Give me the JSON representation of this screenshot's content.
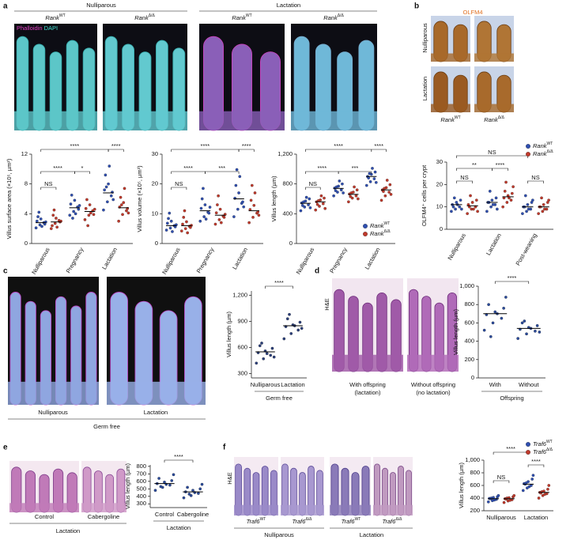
{
  "panel_labels": [
    "a",
    "b",
    "c",
    "d",
    "e",
    "f"
  ],
  "panel_a": {
    "groups": [
      "Nulliparous",
      "Lactation"
    ],
    "genotypes": [
      {
        "text": "Rank",
        "sup": "WT"
      },
      {
        "text": "Rank",
        "sup": "Δ/Δ"
      }
    ],
    "stain": [
      "Phalloidin",
      "DAPI"
    ]
  },
  "panel_b": {
    "stain": "OLFM4",
    "rows": [
      "Nulliparous",
      "Lactation"
    ],
    "genotypes": [
      {
        "text": "Rank",
        "sup": "WT"
      },
      {
        "text": "Rank",
        "sup": "Δ/Δ"
      }
    ]
  },
  "panel_c": {
    "columns": [
      "Nulliparous",
      "Lactation"
    ],
    "condition": "Germ free"
  },
  "panel_d": {
    "stain": "H&E",
    "columns": [
      [
        "With offspring",
        "(lactation)"
      ],
      [
        "Without offspring",
        "(no lactation)"
      ]
    ]
  },
  "panel_e": {
    "columns": [
      "Control",
      "Cabergoline"
    ],
    "condition": "Lactation"
  },
  "panel_f": {
    "stain": "H&E",
    "genotypes": [
      {
        "text": "Traf6",
        "sup": "WT"
      },
      {
        "text": "Traf6",
        "sup": "Δ/Δ"
      }
    ],
    "groups": [
      "Nulliparous",
      "Lactation"
    ]
  },
  "chart_data": [
    {
      "type": "strip",
      "ylabel": "Villus surface area (×10⁵, µm²)",
      "categories": [
        "Nulliparous",
        "Pregnancy",
        "Lactation"
      ],
      "ylim": [
        0,
        12
      ],
      "yticks": [
        0,
        4,
        8,
        12
      ],
      "series": [
        {
          "name": "Rank",
          "name_sup": "WT",
          "color": "#2f4fb0",
          "values": [
            [
              2.1,
              2.5,
              2.8,
              3.0,
              3.3,
              2.6,
              3.6,
              2.3,
              2.9,
              4.2
            ],
            [
              3.8,
              4.3,
              4.9,
              5.3,
              5.8,
              4.6,
              6.5,
              4.0,
              5.1,
              3.4
            ],
            [
              4.5,
              5.6,
              6.4,
              7.2,
              8.0,
              6.9,
              9.2,
              10.4,
              5.9,
              7.6
            ]
          ],
          "means": [
            2.8,
            4.8,
            6.8
          ]
        },
        {
          "name": "Rank",
          "name_sup": "Δ/Δ",
          "color": "#c0392b",
          "values": [
            [
              2.0,
              2.7,
              3.1,
              2.4,
              3.4,
              2.9,
              3.8,
              2.2,
              3.0,
              4.5
            ],
            [
              3.2,
              3.8,
              4.4,
              4.7,
              5.2,
              3.9,
              5.9,
              4.1,
              4.6,
              2.4
            ],
            [
              3.0,
              3.9,
              4.4,
              4.9,
              5.5,
              4.7,
              6.2,
              7.4,
              4.1,
              5.2
            ]
          ],
          "means": [
            2.9,
            4.3,
            4.8
          ]
        }
      ],
      "annotations": [
        "****",
        "****",
        "NS",
        "****",
        "*"
      ]
    },
    {
      "type": "strip",
      "ylabel": "Villus volume (×10⁵, µm³)",
      "categories": [
        "Nulliparous",
        "Pregnancy",
        "Lactation"
      ],
      "ylim": [
        0,
        30
      ],
      "yticks": [
        0,
        10,
        20,
        30
      ],
      "series": [
        {
          "name": "Rank",
          "name_sup": "WT",
          "color": "#2f4fb0",
          "values": [
            [
              4.5,
              5.2,
              6.0,
              6.8,
              7.5,
              5.6,
              8.4,
              4.0,
              6.3,
              10.2
            ],
            [
              7.5,
              9.0,
              10.5,
              11.8,
              13.0,
              10.2,
              15.0,
              8.2,
              12.2,
              18.5
            ],
            [
              9,
              11.5,
              13.5,
              15.2,
              17,
              14,
              19.5,
              22.5,
              12.3,
              24.8
            ]
          ],
          "means": [
            6,
            11,
            15
          ]
        },
        {
          "name": "Rank",
          "name_sup": "Δ/Δ",
          "color": "#c0392b",
          "values": [
            [
              4.2,
              5.0,
              5.8,
              6.5,
              7.3,
              5.4,
              8.8,
              3.6,
              6.1,
              11.0
            ],
            [
              6.5,
              8.0,
              9.2,
              10.3,
              11.5,
              8.8,
              13.0,
              7.0,
              9.8,
              16.0
            ],
            [
              7,
              8.8,
              10.2,
              11.4,
              12.8,
              10.6,
              14.5,
              17,
              9.5,
              19.5
            ]
          ],
          "means": [
            6,
            9.5,
            11
          ]
        }
      ],
      "annotations": [
        "****",
        "****",
        "***",
        "NS",
        "****"
      ]
    },
    {
      "type": "strip",
      "ylabel": "Villus length (µm)",
      "categories": [
        "Nulliparous",
        "Pregnancy",
        "Lactation"
      ],
      "ylim": [
        0,
        1200
      ],
      "yticks": [
        0,
        400,
        800,
        {
          "value": 1200,
          "label": "1,200"
        }
      ],
      "legend": "lower right",
      "series": [
        {
          "name": "Rank",
          "name_sup": "WT",
          "color": "#2f4fb0",
          "values": [
            [
              440,
              490,
              520,
              545,
              570,
              600,
              510,
              620,
              480,
              560
            ],
            [
              640,
              690,
              720,
              745,
              770,
              800,
              710,
              840,
              680,
              760
            ],
            [
              780,
              830,
              870,
              900,
              930,
              960,
              880,
              1010,
              820,
              940
            ]
          ],
          "means": [
            540,
            740,
            900
          ]
        },
        {
          "name": "Rank",
          "name_sup": "Δ/Δ",
          "color": "#c0392b",
          "values": [
            [
              450,
              500,
              535,
              560,
              585,
              610,
              525,
              640,
              470,
              575
            ],
            [
              560,
              610,
              640,
              665,
              690,
              720,
              630,
              760,
              600,
              680
            ],
            [
              580,
              640,
              690,
              720,
              750,
              790,
              700,
              850,
              660,
              740
            ]
          ],
          "means": [
            560,
            660,
            720
          ]
        }
      ],
      "annotations": [
        "****",
        "****",
        "NS",
        "****",
        "***"
      ]
    },
    {
      "type": "strip",
      "ylabel": "OLFM4⁺ cells per crypt",
      "categories": [
        "Nulliparous",
        "Lactation",
        "Post-weaning"
      ],
      "ylim": [
        0,
        30
      ],
      "yticks": [
        0,
        10,
        20,
        30
      ],
      "legend": "upper right",
      "series": [
        {
          "name": "Rank",
          "name_sup": "WT",
          "color": "#2f4fb0",
          "values": [
            [
              8,
              9,
              10,
              11,
              12,
              13,
              10,
              11,
              9,
              14
            ],
            [
              8,
              10,
              11,
              12,
              13,
              14,
              12,
              11,
              9,
              17
            ],
            [
              7,
              8,
              9,
              10,
              11,
              12,
              10,
              9,
              13,
              15
            ]
          ],
          "means": [
            11,
            12,
            10
          ]
        },
        {
          "name": "Rank",
          "name_sup": "Δ/Δ",
          "color": "#c0392b",
          "values": [
            [
              7,
              9,
              10,
              11,
              12,
              13,
              10,
              9,
              8,
              15
            ],
            [
              10,
              12,
              13,
              14,
              15,
              16,
              17,
              14,
              19,
              21
            ],
            [
              7,
              8,
              9,
              10,
              11,
              12,
              10,
              9,
              13,
              14
            ]
          ],
          "means": [
            10.5,
            14.5,
            10
          ]
        }
      ],
      "annotations": [
        "NS",
        "**",
        "****",
        "NS",
        "NS"
      ]
    },
    {
      "type": "strip",
      "ylabel": "Villus length (µm)",
      "xlabel": "Germ free",
      "categories": [
        "Nulliparous",
        "Lactation"
      ],
      "ylim": [
        250,
        1250
      ],
      "yticks": [
        300,
        600,
        900,
        {
          "value": 1200,
          "label": "1,200"
        }
      ],
      "color": "#2b3f7a",
      "values": [
        [
          420,
          470,
          510,
          540,
          560,
          590,
          620,
          530,
          490,
          650
        ],
        [
          700,
          760,
          800,
          840,
          860,
          890,
          930,
          850,
          820,
          980
        ]
      ],
      "means": [
        550,
        850
      ],
      "annotations": [
        "****"
      ]
    },
    {
      "type": "strip",
      "ylabel": "Villus length (µm)",
      "xlabel": "Offspring",
      "categories": [
        "With",
        "Without"
      ],
      "ylim": [
        0,
        1000
      ],
      "yticks": [
        0,
        200,
        400,
        600,
        800,
        {
          "value": 1000,
          "label": "1,000"
        }
      ],
      "color": "#2a4a9a",
      "values": [
        [
          520,
          600,
          650,
          690,
          720,
          760,
          800,
          700,
          880,
          450
        ],
        [
          430,
          480,
          510,
          530,
          550,
          570,
          600,
          540,
          500,
          620
        ]
      ],
      "means": [
        700,
        540
      ],
      "annotations": [
        "****"
      ]
    },
    {
      "type": "strip",
      "ylabel": "Villus length (µm)",
      "xlabel": "Lactation",
      "categories": [
        "Control",
        "Cabergoline"
      ],
      "ylim": [
        250,
        820
      ],
      "yticks": [
        300,
        400,
        500,
        600,
        700,
        800
      ],
      "color": "#2a4a9a",
      "values": [
        [
          480,
          520,
          550,
          570,
          590,
          610,
          640,
          560,
          690,
          530
        ],
        [
          380,
          410,
          440,
          460,
          480,
          500,
          520,
          450,
          560,
          430
        ]
      ],
      "means": [
        570,
        460
      ],
      "annotations": [
        "****"
      ]
    },
    {
      "type": "strip",
      "ylabel": "Villus length (µm)",
      "categories": [
        "Nulliparous",
        "Lactation"
      ],
      "ylim": [
        200,
        1000
      ],
      "yticks": [
        200,
        400,
        600,
        800,
        {
          "value": 1000,
          "label": "1,000"
        }
      ],
      "legend": "upper right",
      "series": [
        {
          "name": "Traf6",
          "name_sup": "WT",
          "color": "#2f4fb0",
          "values": [
            [
              340,
              360,
              380,
              395,
              410,
              420,
              390,
              370,
              440,
              400
            ],
            [
              520,
              560,
              600,
              630,
              660,
              700,
              620,
              580,
              760,
              640
            ]
          ],
          "means": [
            390,
            620
          ]
        },
        {
          "name": "Traf6",
          "name_sup": "Δ/Δ",
          "color": "#c0392b",
          "values": [
            [
              330,
              355,
              375,
              390,
              405,
              420,
              385,
              365,
              440,
              400
            ],
            [
              400,
              440,
              470,
              490,
              510,
              540,
              480,
              460,
              600,
              500
            ]
          ],
          "means": [
            390,
            490
          ]
        }
      ],
      "annotations": [
        "NS",
        "****",
        "****"
      ]
    }
  ]
}
